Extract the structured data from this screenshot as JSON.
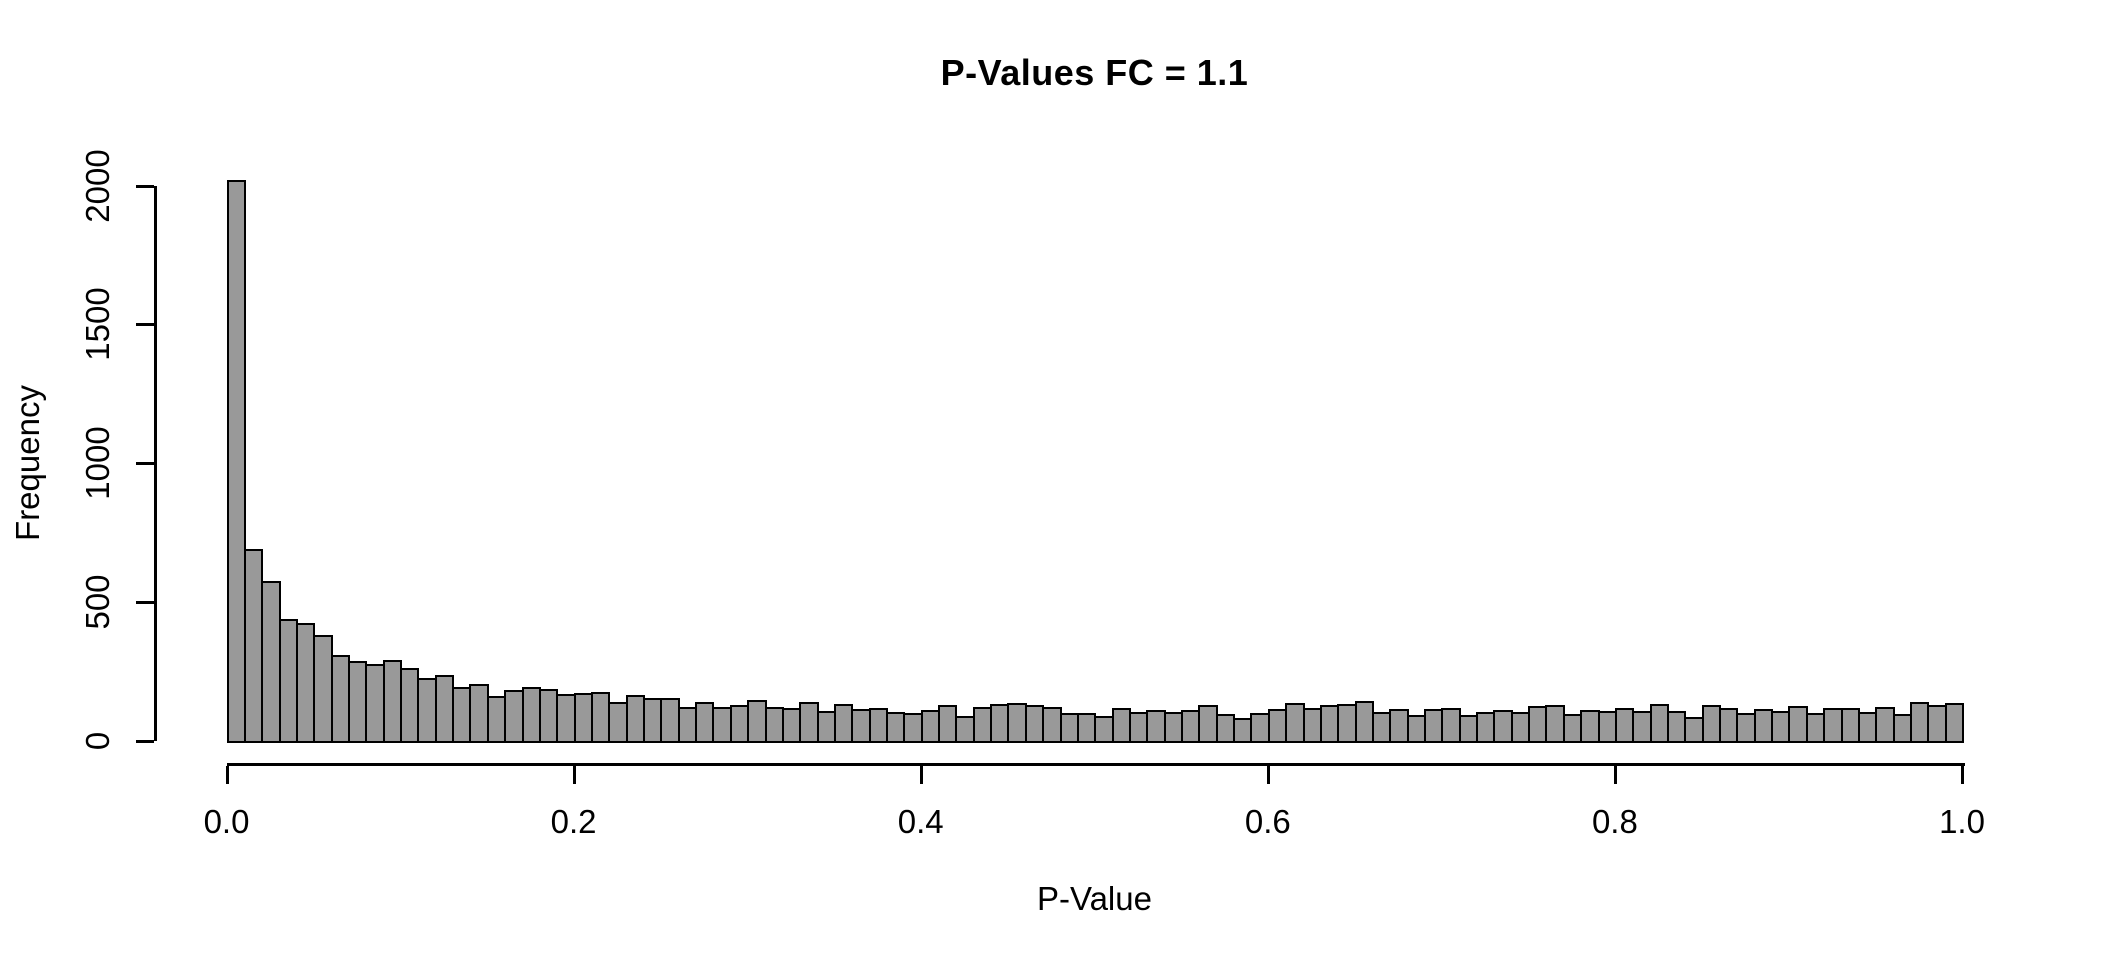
{
  "chart_data": {
    "type": "bar",
    "subtype": "histogram",
    "title": "P-Values FC = 1.1",
    "xlabel": "P-Value",
    "ylabel": "Frequency",
    "xlim": [
      0.0,
      1.0
    ],
    "ylim": [
      0,
      2000
    ],
    "bin_start": 0.0,
    "bin_width": 0.01,
    "grid": false,
    "legend_position": "none",
    "bar_fill_color": "#999999",
    "bar_border_color": "#000000",
    "x_tick_values": [
      0.0,
      0.2,
      0.4,
      0.6,
      0.8,
      1.0
    ],
    "x_tick_labels": [
      "0.0",
      "0.2",
      "0.4",
      "0.6",
      "0.8",
      "1.0"
    ],
    "y_tick_values": [
      0,
      500,
      1000,
      1500,
      2000
    ],
    "y_tick_labels": [
      "0",
      "500",
      "1000",
      "1500",
      "2000"
    ],
    "values": [
      2020,
      690,
      575,
      440,
      425,
      380,
      310,
      288,
      277,
      291,
      262,
      227,
      237,
      194,
      205,
      162,
      183,
      194,
      187,
      169,
      173,
      176,
      140,
      165,
      155,
      155,
      122,
      140,
      122,
      129,
      147,
      122,
      119,
      140,
      108,
      133,
      115,
      119,
      104,
      101,
      112,
      129,
      90,
      122,
      133,
      137,
      129,
      122,
      101,
      101,
      90,
      119,
      104,
      112,
      104,
      112,
      129,
      97,
      83,
      101,
      115,
      137,
      119,
      129,
      133,
      144,
      104,
      115,
      94,
      115,
      119,
      94,
      104,
      112,
      104,
      126,
      129,
      97,
      112,
      108,
      119,
      108,
      133,
      108,
      86,
      129,
      119,
      101,
      115,
      108,
      126,
      101,
      119,
      119,
      104,
      122,
      97,
      140,
      130,
      137
    ]
  }
}
